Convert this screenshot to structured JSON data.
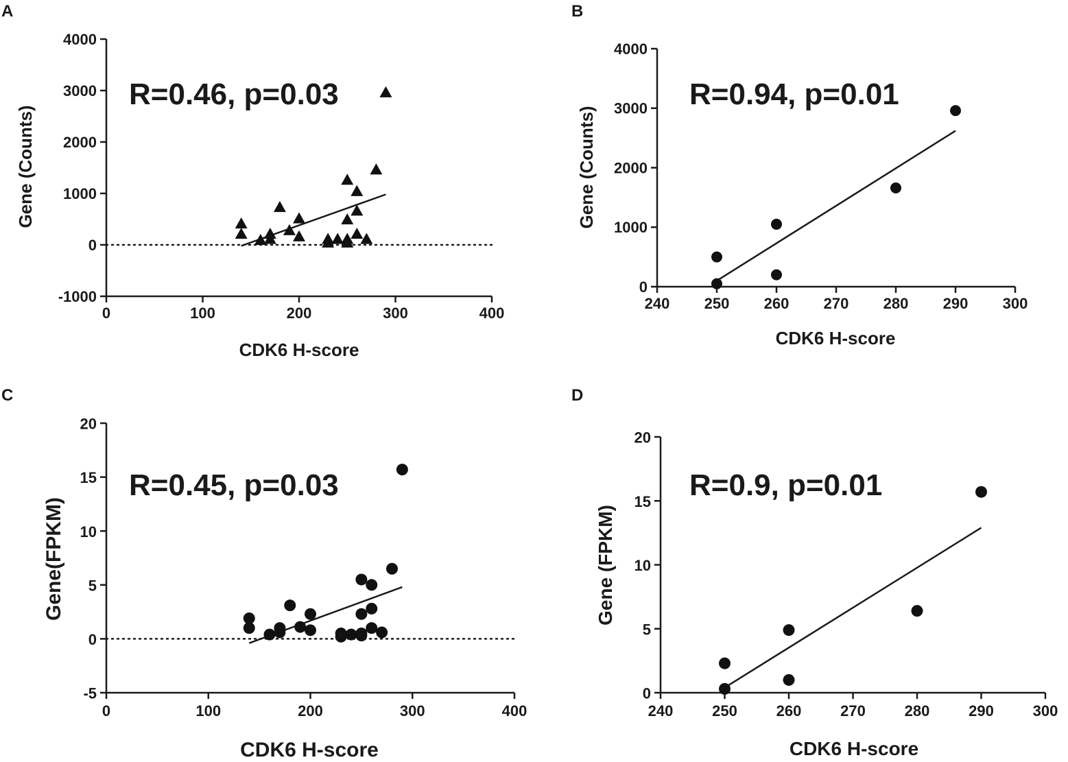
{
  "chart_data": [
    {
      "panel": "A",
      "type": "scatter",
      "marker": "triangle",
      "annotation": "R=0.46, p=0.03",
      "xlabel": "CDK6 H-score",
      "ylabel": "Gene (Counts)",
      "xlim": [
        0,
        400
      ],
      "ylim": [
        -1000,
        4000
      ],
      "xticks": [
        0,
        100,
        200,
        300,
        400
      ],
      "yticks": [
        -1000,
        0,
        1000,
        2000,
        3000,
        4000
      ],
      "xtick_labels": [
        "0",
        "100",
        "200",
        "300",
        "400"
      ],
      "ytick_labels": [
        "-1000",
        "0",
        "1000",
        "2000",
        "3000",
        "4000"
      ],
      "zero_line": true,
      "points": [
        {
          "x": 140,
          "y": 400
        },
        {
          "x": 140,
          "y": 200
        },
        {
          "x": 160,
          "y": 80
        },
        {
          "x": 170,
          "y": 200
        },
        {
          "x": 170,
          "y": 100
        },
        {
          "x": 180,
          "y": 720
        },
        {
          "x": 190,
          "y": 270
        },
        {
          "x": 200,
          "y": 500
        },
        {
          "x": 200,
          "y": 150
        },
        {
          "x": 230,
          "y": 100
        },
        {
          "x": 230,
          "y": 30
        },
        {
          "x": 240,
          "y": 100
        },
        {
          "x": 250,
          "y": 1250
        },
        {
          "x": 250,
          "y": 480
        },
        {
          "x": 250,
          "y": 100
        },
        {
          "x": 250,
          "y": 30
        },
        {
          "x": 260,
          "y": 1030
        },
        {
          "x": 260,
          "y": 650
        },
        {
          "x": 260,
          "y": 200
        },
        {
          "x": 270,
          "y": 100
        },
        {
          "x": 280,
          "y": 1450
        },
        {
          "x": 290,
          "y": 2950
        }
      ],
      "fit_line": {
        "x": [
          140,
          290
        ],
        "y": [
          -20,
          980
        ]
      }
    },
    {
      "panel": "B",
      "type": "scatter",
      "marker": "circle",
      "annotation": "R=0.94, p=0.01",
      "xlabel": "CDK6 H-score",
      "ylabel": "Gene (Counts)",
      "xlim": [
        240,
        300
      ],
      "ylim": [
        0,
        4000
      ],
      "xticks": [
        240,
        250,
        260,
        270,
        280,
        290,
        300
      ],
      "yticks": [
        0,
        1000,
        2000,
        3000,
        4000
      ],
      "xtick_labels": [
        "240",
        "250",
        "260",
        "270",
        "280",
        "290",
        "300"
      ],
      "ytick_labels": [
        "0",
        "1000",
        "2000",
        "3000",
        "4000"
      ],
      "zero_line": false,
      "points": [
        {
          "x": 250,
          "y": 500
        },
        {
          "x": 250,
          "y": 50
        },
        {
          "x": 260,
          "y": 1050
        },
        {
          "x": 260,
          "y": 200
        },
        {
          "x": 280,
          "y": 1660
        },
        {
          "x": 290,
          "y": 2960
        }
      ],
      "fit_line": {
        "x": [
          250,
          290
        ],
        "y": [
          100,
          2620
        ]
      }
    },
    {
      "panel": "C",
      "type": "scatter",
      "marker": "circle",
      "annotation": "R=0.45, p=0.03",
      "xlabel": "CDK6 H-score",
      "ylabel": "Gene(FPKM)",
      "xlim": [
        0,
        400
      ],
      "ylim": [
        -5,
        20
      ],
      "xticks": [
        0,
        100,
        200,
        300,
        400
      ],
      "yticks": [
        -5,
        0,
        5,
        10,
        15,
        20
      ],
      "xtick_labels": [
        "0",
        "100",
        "200",
        "300",
        "400"
      ],
      "ytick_labels": [
        "-5",
        "0",
        "5",
        "10",
        "15",
        "20"
      ],
      "zero_line": true,
      "points": [
        {
          "x": 140,
          "y": 1.9
        },
        {
          "x": 140,
          "y": 1.0
        },
        {
          "x": 160,
          "y": 0.4
        },
        {
          "x": 170,
          "y": 1.0
        },
        {
          "x": 170,
          "y": 0.6
        },
        {
          "x": 180,
          "y": 3.1
        },
        {
          "x": 190,
          "y": 1.1
        },
        {
          "x": 200,
          "y": 2.3
        },
        {
          "x": 200,
          "y": 0.8
        },
        {
          "x": 230,
          "y": 0.5
        },
        {
          "x": 230,
          "y": 0.2
        },
        {
          "x": 240,
          "y": 0.4
        },
        {
          "x": 250,
          "y": 5.5
        },
        {
          "x": 250,
          "y": 2.3
        },
        {
          "x": 250,
          "y": 0.5
        },
        {
          "x": 250,
          "y": 0.3
        },
        {
          "x": 260,
          "y": 5.0
        },
        {
          "x": 260,
          "y": 2.8
        },
        {
          "x": 260,
          "y": 1.0
        },
        {
          "x": 270,
          "y": 0.6
        },
        {
          "x": 280,
          "y": 6.5
        },
        {
          "x": 290,
          "y": 15.7
        }
      ],
      "fit_line": {
        "x": [
          140,
          290
        ],
        "y": [
          -0.4,
          4.8
        ]
      }
    },
    {
      "panel": "D",
      "type": "scatter",
      "marker": "circle",
      "annotation": "R=0.9, p=0.01",
      "xlabel": "CDK6 H-score",
      "ylabel": "Gene (FPKM)",
      "xlim": [
        240,
        300
      ],
      "ylim": [
        0,
        20
      ],
      "xticks": [
        240,
        250,
        260,
        270,
        280,
        290,
        300
      ],
      "yticks": [
        0,
        5,
        10,
        15,
        20
      ],
      "xtick_labels": [
        "240",
        "250",
        "260",
        "270",
        "280",
        "290",
        "300"
      ],
      "ytick_labels": [
        "0",
        "5",
        "10",
        "15",
        "20"
      ],
      "zero_line": false,
      "points": [
        {
          "x": 250,
          "y": 2.3
        },
        {
          "x": 250,
          "y": 0.3
        },
        {
          "x": 260,
          "y": 4.9
        },
        {
          "x": 260,
          "y": 1.0
        },
        {
          "x": 280,
          "y": 6.4
        },
        {
          "x": 290,
          "y": 15.7
        }
      ],
      "fit_line": {
        "x": [
          250,
          290
        ],
        "y": [
          0.4,
          12.9
        ]
      }
    }
  ]
}
